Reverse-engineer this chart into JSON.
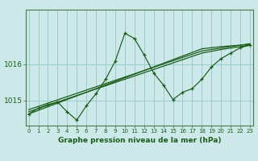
{
  "title": "Graphe pression niveau de la mer (hPa)",
  "bg_color": "#cce8e8",
  "grid_color": "#99cccc",
  "line_color": "#1a5c1a",
  "x_min": 0,
  "x_max": 23,
  "y_min": 1014.3,
  "y_max": 1017.5,
  "yticks": [
    1015,
    1016
  ],
  "xticks": [
    0,
    1,
    2,
    3,
    4,
    5,
    6,
    7,
    8,
    9,
    10,
    11,
    12,
    13,
    14,
    15,
    16,
    17,
    18,
    19,
    20,
    21,
    22,
    23
  ],
  "main_line": [
    1014.62,
    1014.78,
    1014.88,
    1014.95,
    1014.68,
    1014.45,
    1014.85,
    1015.18,
    1015.58,
    1016.08,
    1016.85,
    1016.7,
    1016.25,
    1015.75,
    1015.42,
    1015.02,
    1015.22,
    1015.32,
    1015.58,
    1015.92,
    1016.15,
    1016.3,
    1016.45,
    1016.52
  ],
  "trend1": [
    1014.62,
    1014.72,
    1014.82,
    1014.92,
    1015.02,
    1015.12,
    1015.22,
    1015.32,
    1015.42,
    1015.52,
    1015.62,
    1015.72,
    1015.82,
    1015.92,
    1016.02,
    1016.12,
    1016.22,
    1016.32,
    1016.42,
    1016.45,
    1016.48,
    1016.5,
    1016.52,
    1016.54
  ],
  "trend2": [
    1014.68,
    1014.77,
    1014.86,
    1014.95,
    1015.04,
    1015.13,
    1015.22,
    1015.31,
    1015.4,
    1015.49,
    1015.58,
    1015.67,
    1015.76,
    1015.85,
    1015.94,
    1016.03,
    1016.12,
    1016.21,
    1016.3,
    1016.35,
    1016.4,
    1016.44,
    1016.48,
    1016.52
  ],
  "trend3": [
    1014.74,
    1014.83,
    1014.92,
    1015.01,
    1015.1,
    1015.19,
    1015.28,
    1015.37,
    1015.46,
    1015.55,
    1015.64,
    1015.73,
    1015.82,
    1015.91,
    1016.0,
    1016.09,
    1016.18,
    1016.27,
    1016.36,
    1016.4,
    1016.44,
    1016.48,
    1016.52,
    1016.56
  ]
}
